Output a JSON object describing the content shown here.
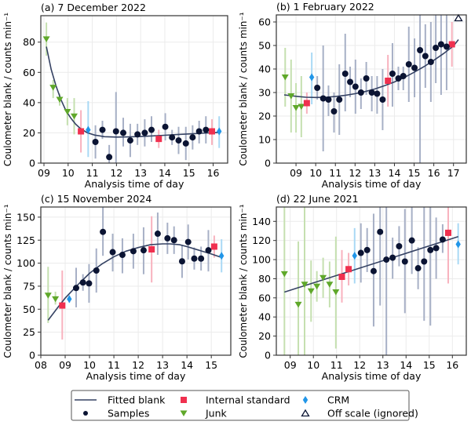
{
  "chart_data": [
    {
      "type": "scatter",
      "title": "(a) 7 December 2022",
      "xlabel": "Analysis time of day",
      "ylabel": "Coulometer blank / counts min⁻¹",
      "xlim": [
        8.87,
        16.6
      ],
      "ylim": [
        0,
        97.5
      ],
      "xticks": [
        9,
        10,
        11,
        12,
        13,
        14,
        15,
        16
      ],
      "xticklabels": [
        "09",
        "10",
        "11",
        "12",
        "13",
        "14",
        "15",
        "16"
      ],
      "yticks": [
        0,
        20,
        40,
        60,
        80
      ],
      "yticklabels": [
        "0",
        "20",
        "40",
        "60",
        "80"
      ],
      "grid": true,
      "fit": {
        "x": [
          9.1,
          9.3,
          9.5,
          9.7,
          9.9,
          10.1,
          10.3,
          10.5,
          10.8,
          11.1,
          11.5,
          12,
          12.5,
          13,
          13.5,
          14,
          14.5,
          15,
          15.5,
          16,
          16.3
        ],
        "y": [
          77,
          62,
          51,
          42,
          35,
          30,
          26,
          23,
          20,
          18.5,
          17.5,
          17.2,
          17.3,
          17.6,
          18,
          18.4,
          18.9,
          19.3,
          19.7,
          20.1,
          20.3
        ]
      },
      "series": [
        {
          "name": "Junk",
          "points": [
            [
              9.1,
              82,
              71,
              93
            ],
            [
              9.38,
              50,
              43,
              55
            ],
            [
              9.65,
              42,
              38,
              46
            ],
            [
              9.97,
              34,
              25,
              43
            ],
            [
              10.25,
              31,
              19,
              43
            ]
          ]
        },
        {
          "name": "Internal standard",
          "points": [
            [
              10.53,
              21,
              7,
              35
            ],
            [
              13.75,
              16,
              10,
              22
            ],
            [
              15.95,
              21,
              12,
              29
            ]
          ]
        },
        {
          "name": "CRM",
          "points": [
            [
              10.83,
              22,
              4,
              41
            ],
            [
              16.25,
              21,
              10,
              31
            ]
          ]
        },
        {
          "name": "Samples",
          "points": [
            [
              11.13,
              14,
              3,
              25
            ],
            [
              11.42,
              22,
              16,
              28
            ],
            [
              11.7,
              4,
              0,
              12
            ],
            [
              11.98,
              21,
              -5,
              47
            ],
            [
              12.28,
              20,
              11,
              30
            ],
            [
              12.57,
              15,
              4,
              26
            ],
            [
              12.87,
              19,
              12,
              26
            ],
            [
              13.17,
              20,
              11,
              29
            ],
            [
              13.45,
              22,
              14,
              31
            ],
            [
              14.02,
              24,
              15,
              33
            ],
            [
              14.3,
              17,
              12,
              22
            ],
            [
              14.57,
              15,
              6,
              24
            ],
            [
              14.87,
              13,
              2,
              24
            ],
            [
              15.15,
              17,
              9,
              25
            ],
            [
              15.42,
              21,
              13,
              28
            ],
            [
              15.7,
              22,
              13,
              31
            ]
          ]
        },
        {
          "name": "Off scale (ignored)",
          "points": []
        }
      ]
    },
    {
      "type": "scatter",
      "title": "(b) 1 February 2022",
      "xlabel": "Analysis time of day",
      "ylabel": "Coulometer blank / counts min⁻¹",
      "xlim": [
        8.0,
        17.65
      ],
      "ylim": [
        0,
        63
      ],
      "xticks": [
        9,
        10,
        11,
        12,
        13,
        14,
        15,
        16,
        17
      ],
      "xticklabels": [
        "09",
        "10",
        "11",
        "12",
        "13",
        "14",
        "15",
        "16",
        "17"
      ],
      "yticks": [
        0,
        10,
        20,
        30,
        40,
        50,
        60
      ],
      "yticklabels": [
        "0",
        "10",
        "20",
        "30",
        "40",
        "50",
        "60"
      ],
      "grid": true,
      "fit": {
        "x": [
          8.4,
          9,
          9.5,
          10,
          10.5,
          11,
          11.5,
          12,
          12.5,
          13,
          13.5,
          14,
          14.5,
          15,
          15.5,
          16,
          16.5,
          17,
          17.25
        ],
        "y": [
          29,
          28.4,
          28,
          27.9,
          28,
          28.3,
          28.8,
          29.5,
          30.4,
          31.5,
          32.9,
          34.5,
          36.4,
          38.6,
          41,
          43.7,
          46.6,
          49.8,
          52.5
        ]
      },
      "series": [
        {
          "name": "Junk",
          "points": [
            [
              8.45,
              36.5,
              24,
              49
            ],
            [
              8.75,
              28.5,
              13,
              44
            ],
            [
              9.0,
              23.5,
              13,
              34
            ],
            [
              9.27,
              24,
              11,
              37
            ]
          ]
        },
        {
          "name": "Internal standard",
          "points": [
            [
              9.55,
              25.5,
              21,
              30
            ],
            [
              13.67,
              35,
              24,
              46
            ],
            [
              16.92,
              50.5,
              41,
              60
            ]
          ]
        },
        {
          "name": "CRM",
          "points": [
            [
              9.8,
              36.5,
              25,
              47
            ]
          ]
        },
        {
          "name": "Samples",
          "points": [
            [
              10.08,
              32,
              27,
              37
            ],
            [
              10.38,
              27.5,
              5,
              50
            ],
            [
              10.65,
              27,
              20,
              33
            ],
            [
              10.93,
              22,
              13,
              30
            ],
            [
              11.2,
              27,
              12,
              42
            ],
            [
              11.5,
              38,
              22,
              55
            ],
            [
              11.75,
              34.5,
              28,
              41
            ],
            [
              12.02,
              32.5,
              21,
              44
            ],
            [
              12.3,
              30,
              23,
              36
            ],
            [
              12.57,
              36,
              29,
              43
            ],
            [
              12.85,
              30,
              22,
              37
            ],
            [
              13.12,
              29.5,
              21,
              37
            ],
            [
              13.4,
              27,
              14,
              40
            ],
            [
              13.9,
              38,
              24,
              51
            ],
            [
              14.2,
              36,
              31,
              41
            ],
            [
              14.45,
              37,
              31,
              41
            ],
            [
              14.73,
              42,
              26,
              58
            ],
            [
              15.02,
              40.5,
              28,
              53
            ],
            [
              15.3,
              48,
              0,
              63
            ],
            [
              15.57,
              45.5,
              32,
              59
            ],
            [
              15.85,
              43,
              26,
              60
            ],
            [
              16.1,
              49,
              34,
              63
            ],
            [
              16.37,
              50.5,
              29,
              63
            ],
            [
              16.65,
              49.5,
              31,
              63
            ]
          ]
        },
        {
          "name": "Off scale (ignored)",
          "points": [
            [
              17.25,
              62.5
            ]
          ]
        }
      ]
    },
    {
      "type": "scatter",
      "title": "(c) 15 November 2024",
      "xlabel": "Analysis time of day",
      "ylabel": "Coulometer blank / counts min⁻¹",
      "xlim": [
        8.0,
        15.8
      ],
      "ylim": [
        0,
        161
      ],
      "xticks": [
        8,
        9,
        10,
        11,
        12,
        13,
        14,
        15
      ],
      "xticklabels": [
        "08",
        "09",
        "10",
        "11",
        "12",
        "13",
        "14",
        "15"
      ],
      "yticks": [
        0,
        25,
        50,
        75,
        100,
        125,
        150
      ],
      "yticklabels": [
        "0",
        "25",
        "50",
        "75",
        "100",
        "125",
        "150"
      ],
      "grid": true,
      "fit": {
        "x": [
          8.3,
          8.7,
          9,
          9.5,
          10,
          10.5,
          11,
          11.5,
          12,
          12.5,
          13,
          13.3,
          13.7,
          14,
          14.5,
          15,
          15.45
        ],
        "y": [
          38,
          52,
          62,
          76,
          89,
          99,
          107,
          113,
          117,
          120,
          121,
          121,
          120,
          118,
          114,
          110,
          106
        ]
      },
      "series": [
        {
          "name": "Junk",
          "points": [
            [
              8.3,
              65,
              35,
              96
            ],
            [
              8.6,
              61,
              55,
              69
            ]
          ]
        },
        {
          "name": "Internal standard",
          "points": [
            [
              8.88,
              54,
              17,
              92
            ],
            [
              12.55,
              115,
              79,
              151
            ],
            [
              15.12,
              118,
              106,
              130
            ]
          ]
        },
        {
          "name": "CRM",
          "points": [
            [
              9.17,
              61,
              57,
              65
            ],
            [
              15.42,
              108,
              90,
              126
            ]
          ]
        },
        {
          "name": "Samples",
          "points": [
            [
              9.45,
              73,
              52,
              95
            ],
            [
              9.73,
              79,
              70,
              88
            ],
            [
              9.98,
              78,
              57,
              99
            ],
            [
              10.28,
              92,
              68,
              116
            ],
            [
              10.55,
              134,
              108,
              161
            ],
            [
              10.95,
              112,
              91,
              132
            ],
            [
              11.35,
              109,
              89,
              127
            ],
            [
              11.8,
              113,
              94,
              132
            ],
            [
              12.22,
              114,
              88,
              139
            ],
            [
              12.8,
              132,
              109,
              155
            ],
            [
              13.2,
              127,
              110,
              144
            ],
            [
              13.47,
              125,
              110,
              140
            ],
            [
              13.8,
              102,
              84,
              120
            ],
            [
              14.05,
              123,
              104,
              142
            ],
            [
              14.3,
              105,
              93,
              117
            ],
            [
              14.58,
              105,
              92,
              118
            ],
            [
              14.88,
              114,
              91,
              136
            ]
          ]
        },
        {
          "name": "Off scale (ignored)",
          "points": []
        }
      ]
    },
    {
      "type": "scatter",
      "title": "(d) 22 June 2021",
      "xlabel": "Analysis time of day",
      "ylabel": "Coulometer blank / counts min⁻¹",
      "xlim": [
        8.4,
        16.6
      ],
      "ylim": [
        0,
        155
      ],
      "xticks": [
        9,
        10,
        11,
        12,
        13,
        14,
        15,
        16
      ],
      "xticklabels": [
        "09",
        "10",
        "11",
        "12",
        "13",
        "14",
        "15",
        "16"
      ],
      "yticks": [
        0,
        20,
        40,
        60,
        80,
        100,
        120,
        140
      ],
      "yticklabels": [
        "0",
        "20",
        "40",
        "60",
        "80",
        "100",
        "120",
        "140"
      ],
      "grid": true,
      "fit": {
        "x": [
          8.75,
          16.25
        ],
        "y": [
          66,
          124
        ]
      },
      "series": [
        {
          "name": "Junk",
          "points": [
            [
              8.75,
              85,
              0,
              155
            ],
            [
              9.35,
              53,
              0,
              119
            ],
            [
              9.62,
              74,
              0,
              155
            ],
            [
              9.9,
              67,
              35,
              99
            ],
            [
              10.15,
              72,
              56,
              88
            ],
            [
              10.42,
              81,
              60,
              102
            ],
            [
              10.7,
              74,
              50,
              98
            ],
            [
              10.97,
              66,
              7,
              124
            ]
          ]
        },
        {
          "name": "Internal standard",
          "points": [
            [
              11.23,
              82,
              55,
              110
            ],
            [
              11.52,
              90,
              73,
              107
            ],
            [
              15.82,
              128,
              75,
              155
            ]
          ]
        },
        {
          "name": "CRM",
          "points": [
            [
              11.78,
              104,
              75,
              133
            ],
            [
              16.25,
              116,
              95,
              138
            ]
          ]
        },
        {
          "name": "Samples",
          "points": [
            [
              12.05,
              107,
              76,
              138
            ],
            [
              12.32,
              110,
              87,
              133
            ],
            [
              12.6,
              88,
              30,
              148
            ],
            [
              12.88,
              129,
              52,
              155
            ],
            [
              13.15,
              100,
              0,
              155
            ],
            [
              13.42,
              102,
              80,
              123
            ],
            [
              13.7,
              114,
              93,
              135
            ],
            [
              13.95,
              98,
              44,
              153
            ],
            [
              14.25,
              120,
              85,
              155
            ],
            [
              14.52,
              91,
              69,
              113
            ],
            [
              14.78,
              98,
              36,
              155
            ],
            [
              15.05,
              110,
              31,
              155
            ],
            [
              15.3,
              112,
              80,
              144
            ],
            [
              15.58,
              121,
              107,
              137
            ]
          ]
        },
        {
          "name": "Off scale (ignored)",
          "points": []
        }
      ]
    }
  ],
  "legend": {
    "items": [
      {
        "label": "Fitted blank",
        "marker": "line"
      },
      {
        "label": "Internal standard",
        "marker": "square"
      },
      {
        "label": "CRM",
        "marker": "diamond"
      },
      {
        "label": "Samples",
        "marker": "circle"
      },
      {
        "label": "Junk",
        "marker": "triangle-down"
      },
      {
        "label": "Off scale (ignored)",
        "marker": "triangle-up-open"
      }
    ]
  },
  "colors": {
    "Samples": "#0b1433",
    "Samples_err": "#a7b0c6",
    "Junk": "#5fa82a",
    "Junk_err": "#c5e0b0",
    "Internal standard": "#f0304f",
    "Internal standard_err": "#f8b2be",
    "CRM": "#2196e8",
    "CRM_err": "#a9d9f5",
    "fit": "#354263",
    "grid": "#ebebeb"
  }
}
